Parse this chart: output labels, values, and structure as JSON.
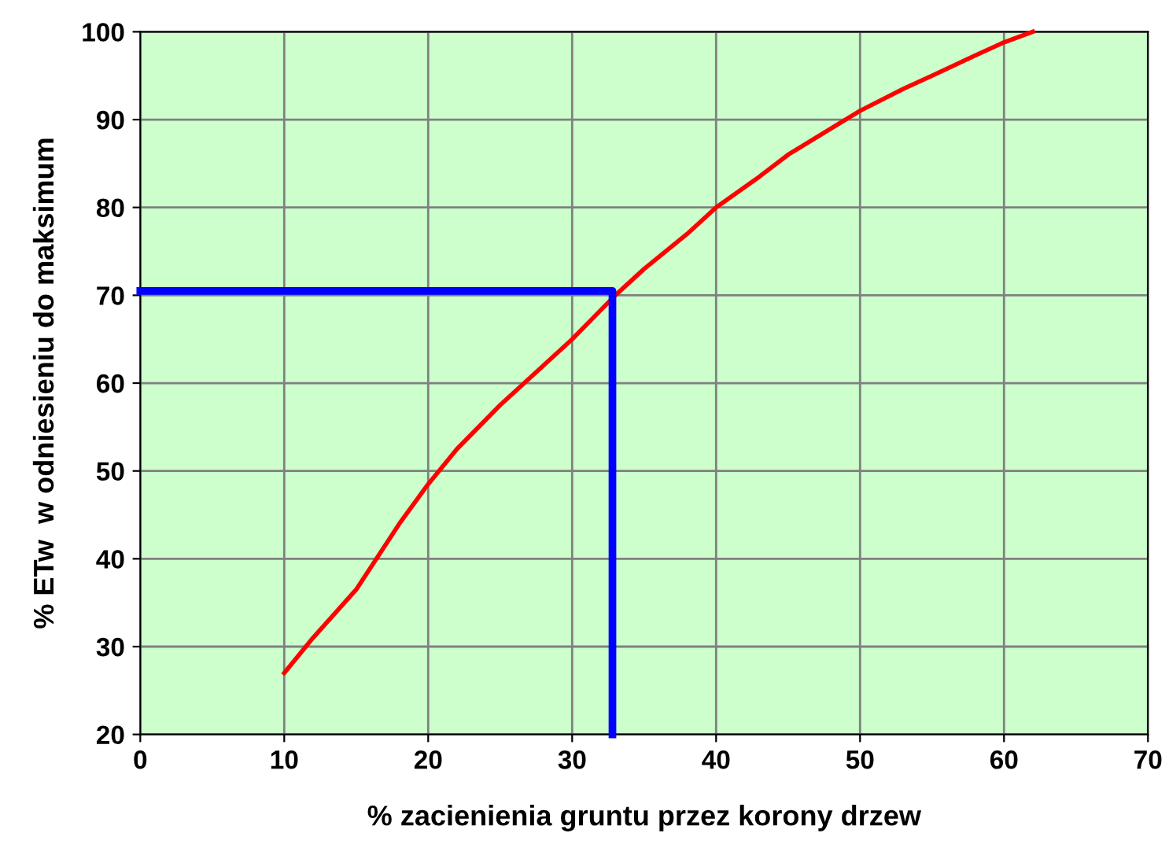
{
  "chart_data": {
    "type": "line",
    "xlabel": "% zacienienia gruntu przez korony drzew",
    "ylabel": "% ETw  w odniesieniu do maksimum",
    "series": [
      {
        "color": "#ff0000",
        "x": [
          10,
          12,
          15,
          18,
          20,
          22,
          25,
          28,
          30,
          33,
          35,
          38,
          40,
          43,
          45,
          48,
          50,
          53,
          55,
          58,
          60,
          62
        ],
        "values": [
          27,
          31,
          36.5,
          44,
          48.5,
          52.5,
          57.5,
          62,
          65,
          70,
          73,
          77,
          80,
          83.5,
          86,
          89,
          91,
          93.5,
          95,
          97.3,
          98.8,
          100
        ]
      },
      {
        "color": "#0000ff",
        "x": [
          0,
          32.8,
          32.8
        ],
        "values": [
          70.5,
          70.5,
          20
        ]
      }
    ],
    "xlim": [
      0,
      70
    ],
    "xticks": [
      0,
      10,
      20,
      30,
      40,
      50,
      60,
      70
    ],
    "ylim": [
      20,
      100
    ],
    "yticks": [
      20,
      30,
      40,
      50,
      60,
      70,
      80,
      90,
      100
    ],
    "grid": true,
    "legend": false,
    "marker": "none",
    "line_style": "solid"
  }
}
